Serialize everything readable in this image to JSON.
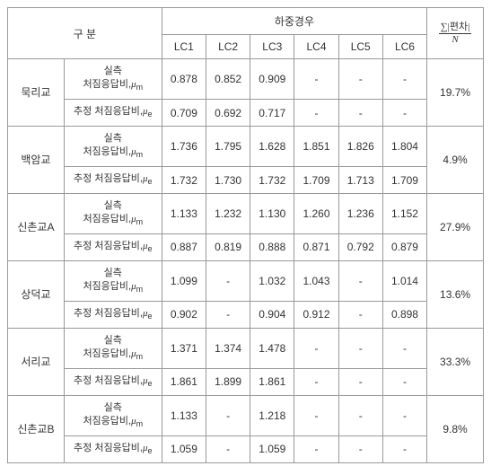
{
  "header": {
    "category": "구 분",
    "loadcase_group": "하중경우",
    "load_cases": [
      "LC1",
      "LC2",
      "LC3",
      "LC4",
      "LC5",
      "LC6"
    ],
    "sum_label_top": "∑|편차|",
    "sum_label_bot": "N"
  },
  "row_labels": {
    "measured_a": "실측",
    "measured_b": "처짐응답비,",
    "measured_sym": "μ",
    "measured_sub": "m",
    "estimated": "추정 처짐응답비,",
    "estimated_sym": "μ",
    "estimated_sub": "e"
  },
  "bridges": [
    {
      "name": "묵리교",
      "measured": [
        "0.878",
        "0.852",
        "0.909",
        "-",
        "-",
        "-"
      ],
      "estimated": [
        "0.709",
        "0.692",
        "0.717",
        "-",
        "-",
        "-"
      ],
      "pct": "19.7%"
    },
    {
      "name": "백암교",
      "measured": [
        "1.736",
        "1.795",
        "1.628",
        "1.851",
        "1.826",
        "1.804"
      ],
      "estimated": [
        "1.732",
        "1.730",
        "1.732",
        "1.709",
        "1.713",
        "1.709"
      ],
      "pct": "4.9%"
    },
    {
      "name": "신촌교A",
      "measured": [
        "1.133",
        "1.232",
        "1.130",
        "1.260",
        "1.236",
        "1.152"
      ],
      "estimated": [
        "0.887",
        "0.819",
        "0.888",
        "0.871",
        "0.792",
        "0.879"
      ],
      "pct": "27.9%"
    },
    {
      "name": "상덕교",
      "measured": [
        "1.099",
        "-",
        "1.032",
        "1.043",
        "-",
        "1.014"
      ],
      "estimated": [
        "0.902",
        "-",
        "0.904",
        "0.912",
        "-",
        "0.898"
      ],
      "pct": "13.6%"
    },
    {
      "name": "서리교",
      "measured": [
        "1.371",
        "1.374",
        "1.478",
        "-",
        "-",
        "-"
      ],
      "estimated": [
        "1.861",
        "1.899",
        "1.861",
        "-",
        "-",
        "-"
      ],
      "pct": "33.3%"
    },
    {
      "name": "신촌교B",
      "measured": [
        "1.133",
        "-",
        "1.218",
        "-",
        "-",
        "-"
      ],
      "estimated": [
        "1.059",
        "-",
        "1.059",
        "-",
        "-",
        "-"
      ],
      "pct": "9.8%"
    }
  ],
  "col_widths": {
    "name": "60",
    "label": "104",
    "lc": "47",
    "pct": "60"
  }
}
